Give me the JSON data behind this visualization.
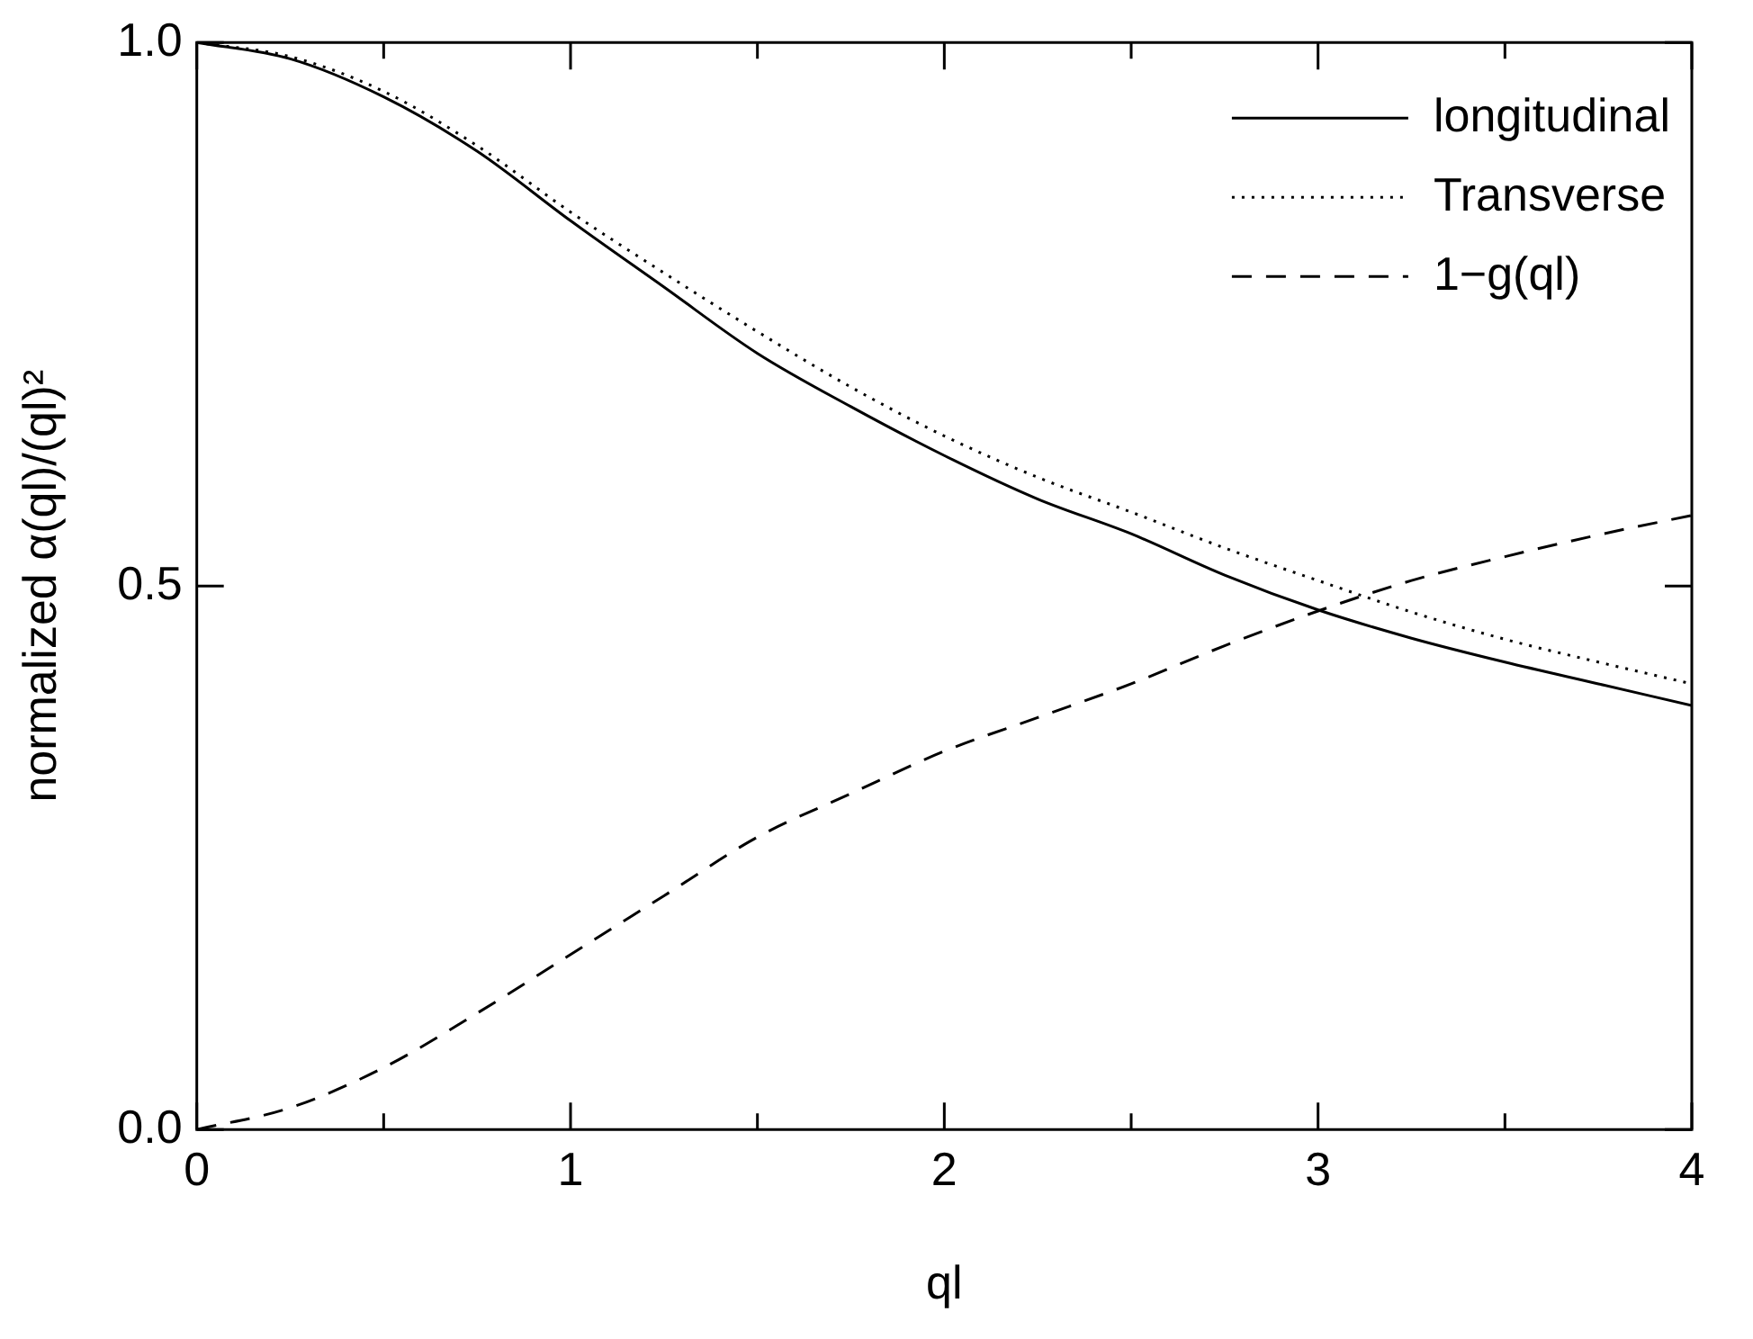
{
  "chart_data": {
    "type": "line",
    "xlabel": "ql",
    "ylabel": "normalized α(ql)/(ql)²",
    "x": [
      0,
      0.25,
      0.5,
      0.75,
      1,
      1.25,
      1.5,
      1.75,
      2,
      2.25,
      2.5,
      2.75,
      3,
      3.25,
      3.5,
      3.75,
      4
    ],
    "series": [
      {
        "name": "longitudinal",
        "color": "#000000",
        "line_style": "solid",
        "values": [
          1.0,
          0.985,
          0.95,
          0.9,
          0.836,
          0.775,
          0.714,
          0.665,
          0.62,
          0.58,
          0.548,
          0.51,
          0.478,
          0.452,
          0.43,
          0.41,
          0.39
        ]
      },
      {
        "name": "Transverse",
        "color": "#000000",
        "line_style": "dotted",
        "values": [
          1.0,
          0.987,
          0.955,
          0.905,
          0.844,
          0.788,
          0.734,
          0.683,
          0.638,
          0.6,
          0.568,
          0.535,
          0.505,
          0.476,
          0.451,
          0.43,
          0.41
        ]
      },
      {
        "name": "1−g(ql)",
        "color": "#000000",
        "line_style": "dashed",
        "values": [
          0,
          0.02,
          0.057,
          0.107,
          0.161,
          0.215,
          0.269,
          0.309,
          0.348,
          0.379,
          0.41,
          0.445,
          0.477,
          0.505,
          0.527,
          0.547,
          0.565
        ]
      }
    ],
    "xlim": [
      0,
      4
    ],
    "xticks": [
      0,
      {
        "value": 0.5,
        "label": null
      },
      1,
      {
        "value": 1.5,
        "label": null
      },
      2,
      {
        "value": 2.5,
        "label": null
      },
      3,
      {
        "value": 3.5,
        "label": null
      },
      4
    ],
    "ylim": [
      0,
      1
    ],
    "yticks": [
      {
        "value": 0,
        "label": "0.0"
      },
      {
        "value": 0.5,
        "label": "0.5"
      },
      {
        "value": 1,
        "label": "1.0"
      }
    ],
    "legend": "top right",
    "marker": "none",
    "grid": false
  }
}
